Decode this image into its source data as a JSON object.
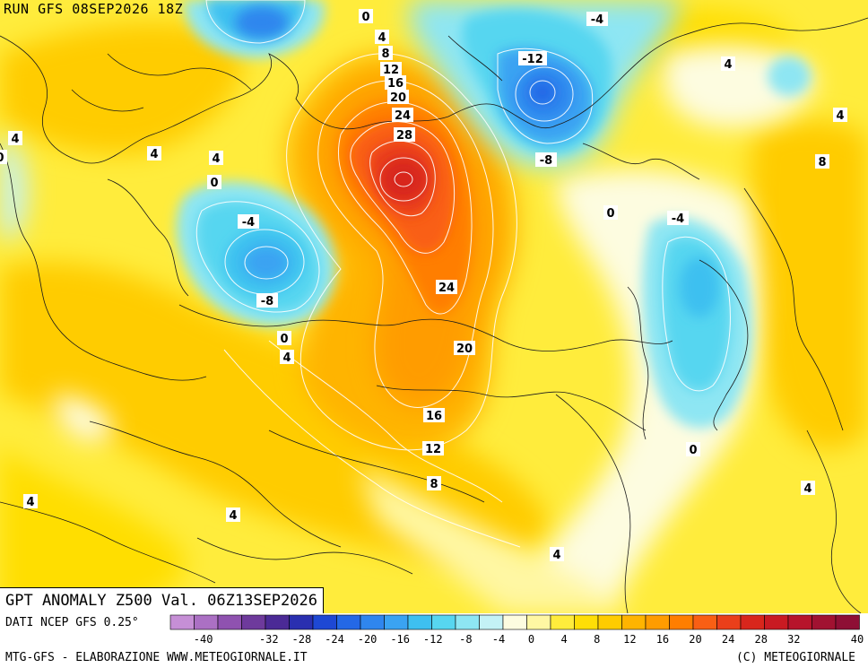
{
  "header": {
    "run_label": "RUN GFS 08SEP2026 18Z"
  },
  "title": "GPT ANOMALY Z500 Val. 06Z13SEP2026",
  "footer": {
    "data_source": "DATI NCEP GFS 0.25°",
    "credit": "MTG-GFS - ELABORAZIONE WWW.METEOGIORNALE.IT",
    "copyright": "(C) METEOGIORNALE"
  },
  "legend": {
    "colors": [
      "#c68fd6",
      "#ab70c4",
      "#8f52b0",
      "#6e3a9c",
      "#4b2a96",
      "#2a2fb0",
      "#1e48d4",
      "#2468e6",
      "#2f86ee",
      "#3aa3f2",
      "#3ec0f0",
      "#57d6f0",
      "#8ee6f3",
      "#c4f2f6",
      "#fdfce0",
      "#fff7a3",
      "#ffec3c",
      "#ffde06",
      "#ffcc00",
      "#ffb400",
      "#ff9c00",
      "#ff7e00",
      "#f95f14",
      "#ea3f1a",
      "#d8261c",
      "#c91a22",
      "#b7142b",
      "#a11231",
      "#8e0f35"
    ],
    "tick_labels": [
      "-40",
      "-32",
      "-28",
      "-24",
      "-20",
      "-16",
      "-12",
      "-8",
      "-4",
      "0",
      "4",
      "8",
      "12",
      "16",
      "20",
      "24",
      "28",
      "32",
      "40"
    ]
  },
  "contour_labels": [
    {
      "text": "0"
    },
    {
      "text": "4"
    },
    {
      "text": "8"
    },
    {
      "text": "12"
    },
    {
      "text": "16"
    },
    {
      "text": "20"
    },
    {
      "text": "24"
    },
    {
      "text": "28"
    },
    {
      "text": "-4"
    },
    {
      "text": "-12"
    },
    {
      "text": "-8"
    },
    {
      "text": "0"
    },
    {
      "text": "-4"
    },
    {
      "text": "4"
    },
    {
      "text": "4"
    },
    {
      "text": "8"
    },
    {
      "text": "4"
    },
    {
      "text": "4"
    },
    {
      "text": "4"
    },
    {
      "text": "0"
    },
    {
      "text": "-4"
    },
    {
      "text": "-8"
    },
    {
      "text": "0"
    },
    {
      "text": "4"
    },
    {
      "text": "24"
    },
    {
      "text": "20"
    },
    {
      "text": "16"
    },
    {
      "text": "12"
    },
    {
      "text": "8"
    },
    {
      "text": "0"
    },
    {
      "text": "4"
    },
    {
      "text": "4"
    },
    {
      "text": "4"
    },
    {
      "text": "4"
    },
    {
      "text": "0"
    }
  ]
}
